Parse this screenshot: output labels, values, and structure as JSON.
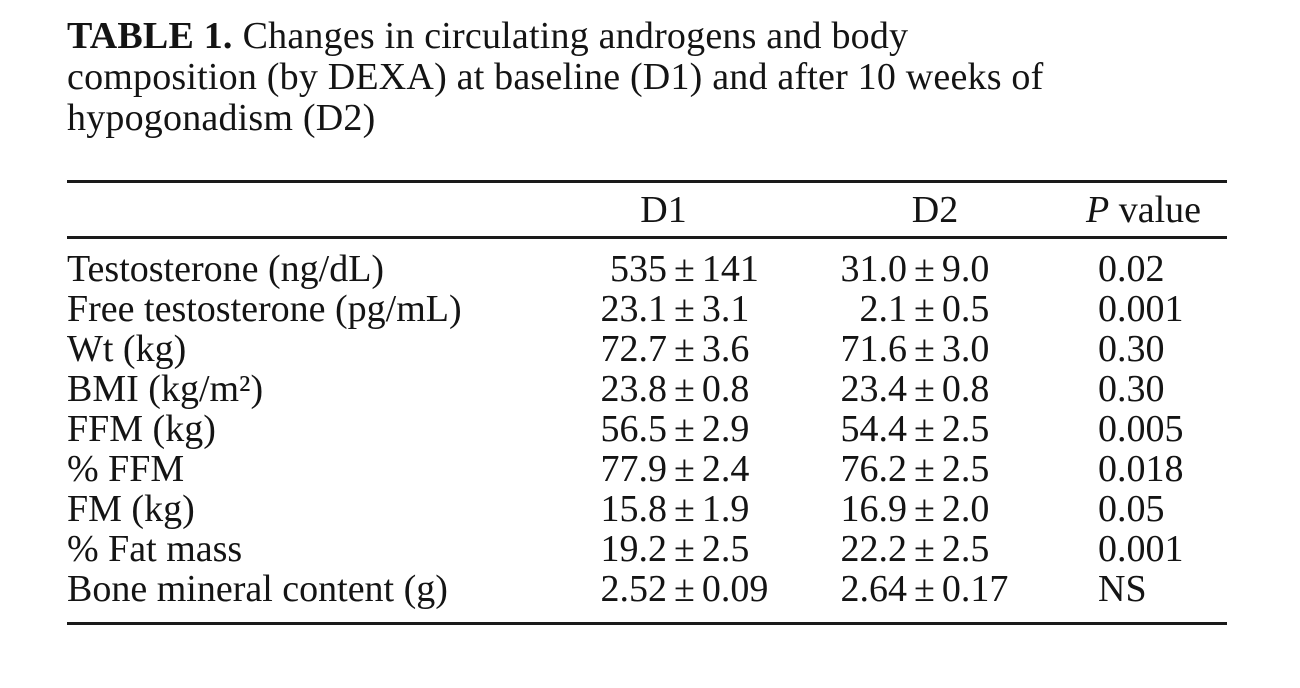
{
  "title": {
    "label": "TABLE 1.",
    "line1_rest": "Changes in circulating androgens and body",
    "line2": "composition (by DEXA) at baseline (D1) and after 10 weeks of",
    "line3": "hypogonadism (D2)"
  },
  "table": {
    "columns": {
      "label": "",
      "d1": "D1",
      "d2": "D2",
      "p_prefix": "P",
      "p_suffix": " value"
    },
    "rows": [
      {
        "label": "Testosterone (ng/dL)",
        "d1": "535 ± 141",
        "d2": "31.0 ± 9.0",
        "p": "0.02"
      },
      {
        "label": "Free testosterone (pg/mL)",
        "d1": "23.1 ± 3.1",
        "d2": "2.1 ± 0.5",
        "p": "0.001"
      },
      {
        "label": "Wt (kg)",
        "d1": "72.7 ± 3.6",
        "d2": "71.6 ± 3.0",
        "p": "0.30"
      },
      {
        "label": "BMI (kg/m²)",
        "d1": "23.8 ± 0.8",
        "d2": "23.4 ± 0.8",
        "p": "0.30"
      },
      {
        "label": "FFM (kg)",
        "d1": "56.5 ± 2.9",
        "d2": "54.4 ± 2.5",
        "p": "0.005"
      },
      {
        "label": "% FFM",
        "d1": "77.9 ± 2.4",
        "d2": "76.2 ± 2.5",
        "p": "0.018"
      },
      {
        "label": "FM (kg)",
        "d1": "15.8 ± 1.9",
        "d2": "16.9 ± 2.0",
        "p": "0.05"
      },
      {
        "label": "% Fat mass",
        "d1": "19.2 ± 2.5",
        "d2": "22.2 ± 2.5",
        "p": "0.001"
      },
      {
        "label": "Bone mineral content (g)",
        "d1": "2.52 ± 0.09",
        "d2": "2.64 ± 0.17",
        "p": "NS"
      }
    ],
    "plus_minus_symbol": "±",
    "colors": {
      "text": "#141414",
      "rule": "#1a1a1a",
      "background": "#ffffff"
    }
  }
}
